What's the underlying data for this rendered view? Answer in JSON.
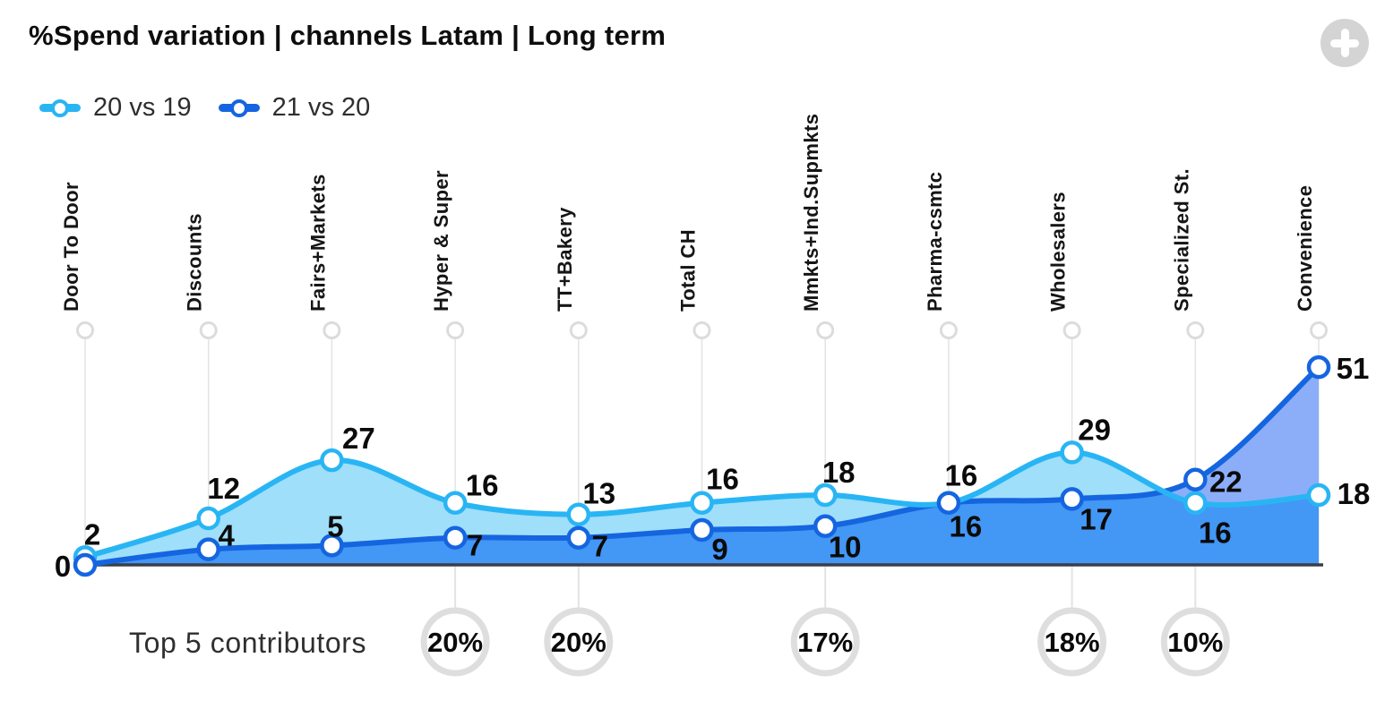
{
  "header": {
    "title": "%Spend variation | channels Latam | Long term",
    "action_icon": "plus",
    "action_button_color": "#d4d4d4"
  },
  "chart_data": {
    "type": "line",
    "title": "%Spend variation | channels Latam | Long term",
    "categories": [
      "Door To Door",
      "Discounts",
      "Fairs+Markets",
      "Hyper & Super",
      "TT+Bakery",
      "Total CH",
      "Mmkts+Ind.Supmkts",
      "Pharma-csmtc",
      "Wholesalers",
      "Specialized St.",
      "Convenience"
    ],
    "series": [
      {
        "name": "20 vs 19",
        "values": [
          2,
          12,
          27,
          16,
          13,
          16,
          18,
          16,
          29,
          16,
          18
        ],
        "line_color": "#29b5f4",
        "area_color": "#9fdffa",
        "marker": "open-circle"
      },
      {
        "name": "21 vs 20",
        "values": [
          0,
          4,
          5,
          7,
          7,
          9,
          10,
          16,
          17,
          22,
          51
        ],
        "line_color": "#1565e0",
        "area_color": "#8caef8",
        "marker": "open-circle"
      }
    ],
    "overlap_area_color": "#4397f5",
    "grid": "vertical-category-lines",
    "grid_color": "#e3e3e3",
    "axis_color": "#3a3f45",
    "ylim": [
      0,
      55
    ],
    "baseline_value": 0,
    "legend_position": "top-left",
    "data_labels": "visible",
    "footer": {
      "label": "Top 5 contributors",
      "items": [
        {
          "category": "Hyper & Super",
          "value": "20%"
        },
        {
          "category": "TT+Bakery",
          "value": "20%"
        },
        {
          "category": "Mmkts+Ind.Supmkts",
          "value": "17%"
        },
        {
          "category": "Wholesalers",
          "value": "18%"
        },
        {
          "category": "Specialized St.",
          "value": "10%"
        }
      ]
    }
  }
}
